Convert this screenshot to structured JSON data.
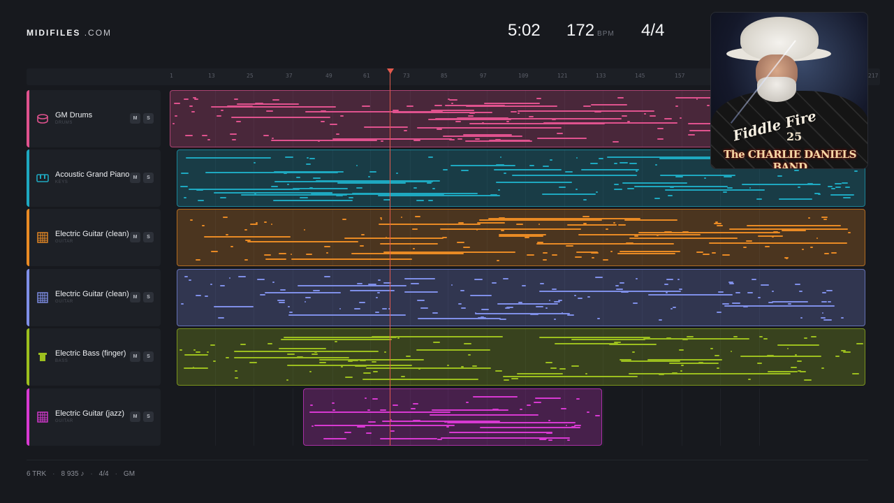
{
  "brand": {
    "name": "MIDIFILES",
    "suffix": ".COM"
  },
  "transport": {
    "time": "5:02",
    "tempo": "172",
    "tempo_unit": "BPM",
    "signature": "4/4"
  },
  "ruler": {
    "ticks": [
      "1",
      "13",
      "25",
      "37",
      "49",
      "61",
      "73",
      "85",
      "97",
      "109",
      "121",
      "133",
      "145",
      "157",
      "",
      "",
      "217"
    ]
  },
  "playhead_bar": 70,
  "tracks": [
    {
      "name": "GM Drums",
      "category": "DRUMS",
      "color": "#e0528e",
      "icon": "drum-icon",
      "mute": "M",
      "solo": "S"
    },
    {
      "name": "Acoustic Grand Piano",
      "category": "KEYS",
      "color": "#1ea8c0",
      "icon": "piano-icon",
      "mute": "M",
      "solo": "S"
    },
    {
      "name": "Electric Guitar (clean)",
      "category": "GUITAR",
      "color": "#e98a24",
      "icon": "guitar-icon",
      "mute": "M",
      "solo": "S"
    },
    {
      "name": "Electric Guitar (clean)",
      "category": "GUITAR",
      "color": "#7f8fe8",
      "icon": "guitar-icon",
      "mute": "M",
      "solo": "S"
    },
    {
      "name": "Electric Bass (finger)",
      "category": "BASS",
      "color": "#9cbf1e",
      "icon": "bass-icon",
      "mute": "M",
      "solo": "S"
    },
    {
      "name": "Electric Guitar (jazz)",
      "category": "GUITAR",
      "color": "#d839d2",
      "icon": "guitar-icon",
      "mute": "M",
      "solo": "S"
    }
  ],
  "album": {
    "title": "Fiddle Fire",
    "badge": "25",
    "artist": "The CHARLIE DANIELS BAND"
  },
  "footer": {
    "tracks": "6 TRK",
    "notes": "8 935 ♪",
    "signature": "4/4",
    "standard": "GM"
  }
}
